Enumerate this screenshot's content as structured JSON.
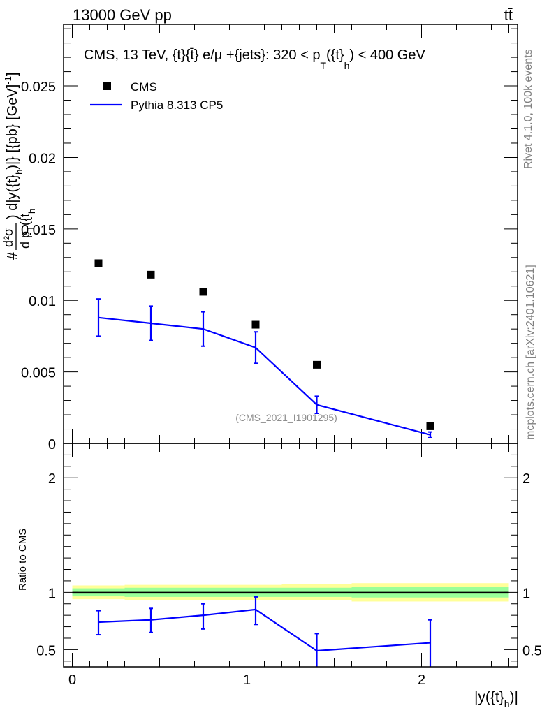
{
  "header": {
    "energy": "13000 GeV pp",
    "process": "tt̄"
  },
  "side_labels": {
    "rivet": "Rivet 4.1.0,  100k events",
    "mcplots": "mcplots.cern.ch [arXiv:2401.10621]"
  },
  "chart_data": [
    {
      "type": "scatter",
      "panel": "main",
      "title": "CMS, 13 TeV, {t}{t̄} e/μ +{jets}: 320 <  p_T({t}_h) < 400 GeV",
      "title_parts": {
        "prefix": "CMS, 13 TeV, {t}{t̄} e/μ +{jets}: 320 <  p",
        "sub": "T",
        "mid": "({t}",
        "sub2": "h",
        "suffix": ") < 400 GeV"
      },
      "ylabel": "#frac{d^{2}σ}{d p_{T}({t}_{h}) d|y({t}_{h})|} [{pb} [GeV]^{-1}]",
      "ylabel_parts": {
        "hash": "#",
        "frac_num": "d²σ",
        "frac_den": "d p",
        "sub_T": "T",
        "paren": "({t",
        "sub_h": "h",
        "rest": ") d|y({t}",
        "sub_h2": "h",
        "tail": ")|} [{pb} [GeV]",
        "sup": "-1",
        "close": "]"
      },
      "watermark": "(CMS_2021_I1901295)",
      "ylim": [
        0,
        0.0293
      ],
      "xlim": [
        -0.05,
        2.55
      ],
      "yticks": [
        0,
        0.005,
        0.01,
        0.015,
        0.02,
        0.025
      ],
      "ytick_labels": [
        "0",
        "0.005",
        "0.01",
        "0.015",
        "0.02",
        "0.025"
      ],
      "legend": [
        {
          "name": "CMS",
          "marker": "square",
          "color": "#000000"
        },
        {
          "name": "Pythia 8.313 CP5",
          "marker": "line",
          "color": "#0000ff"
        }
      ],
      "series": [
        {
          "name": "CMS",
          "x": [
            0.15,
            0.45,
            0.75,
            1.05,
            1.4,
            2.05
          ],
          "y": [
            0.0126,
            0.0118,
            0.0106,
            0.0083,
            0.0055,
            0.0012
          ]
        },
        {
          "name": "Pythia 8.313 CP5",
          "x": [
            0.15,
            0.45,
            0.75,
            1.05,
            1.4,
            2.05
          ],
          "y": [
            0.0088,
            0.0084,
            0.008,
            0.0067,
            0.0027,
            0.0006
          ],
          "yerr": [
            0.0013,
            0.0012,
            0.0012,
            0.0011,
            0.0006,
            0.0002
          ]
        }
      ]
    },
    {
      "type": "line",
      "panel": "ratio",
      "ylabel": "Ratio to CMS",
      "xlabel": "|y({t}_h)|",
      "xlabel_parts": {
        "main": "|y({t}",
        "sub": "h",
        "close": ")|"
      },
      "ylim": [
        0.35,
        2.3
      ],
      "xlim": [
        -0.05,
        2.55
      ],
      "yticks": [
        0.5,
        1,
        2
      ],
      "ytick_labels": [
        "0.5",
        "1",
        "2"
      ],
      "xticks": [
        0,
        1,
        2
      ],
      "xtick_labels": [
        "0",
        "1",
        "2"
      ],
      "bins": [
        0,
        0.3,
        0.6,
        0.9,
        1.2,
        1.6,
        2.5
      ],
      "band_outer": [
        0.06,
        0.065,
        0.065,
        0.065,
        0.07,
        0.08
      ],
      "band_inner": [
        0.035,
        0.04,
        0.04,
        0.04,
        0.04,
        0.045
      ],
      "series": [
        {
          "name": "Pythia 8.313 CP5",
          "x": [
            0.15,
            0.45,
            0.75,
            1.05,
            1.4,
            2.05
          ],
          "y": [
            0.74,
            0.76,
            0.8,
            0.85,
            0.49,
            0.56
          ],
          "yerr_low": [
            0.11,
            0.11,
            0.12,
            0.13,
            0.16,
            0.22
          ],
          "yerr_high": [
            0.1,
            0.1,
            0.1,
            0.11,
            0.15,
            0.2
          ]
        }
      ]
    }
  ]
}
